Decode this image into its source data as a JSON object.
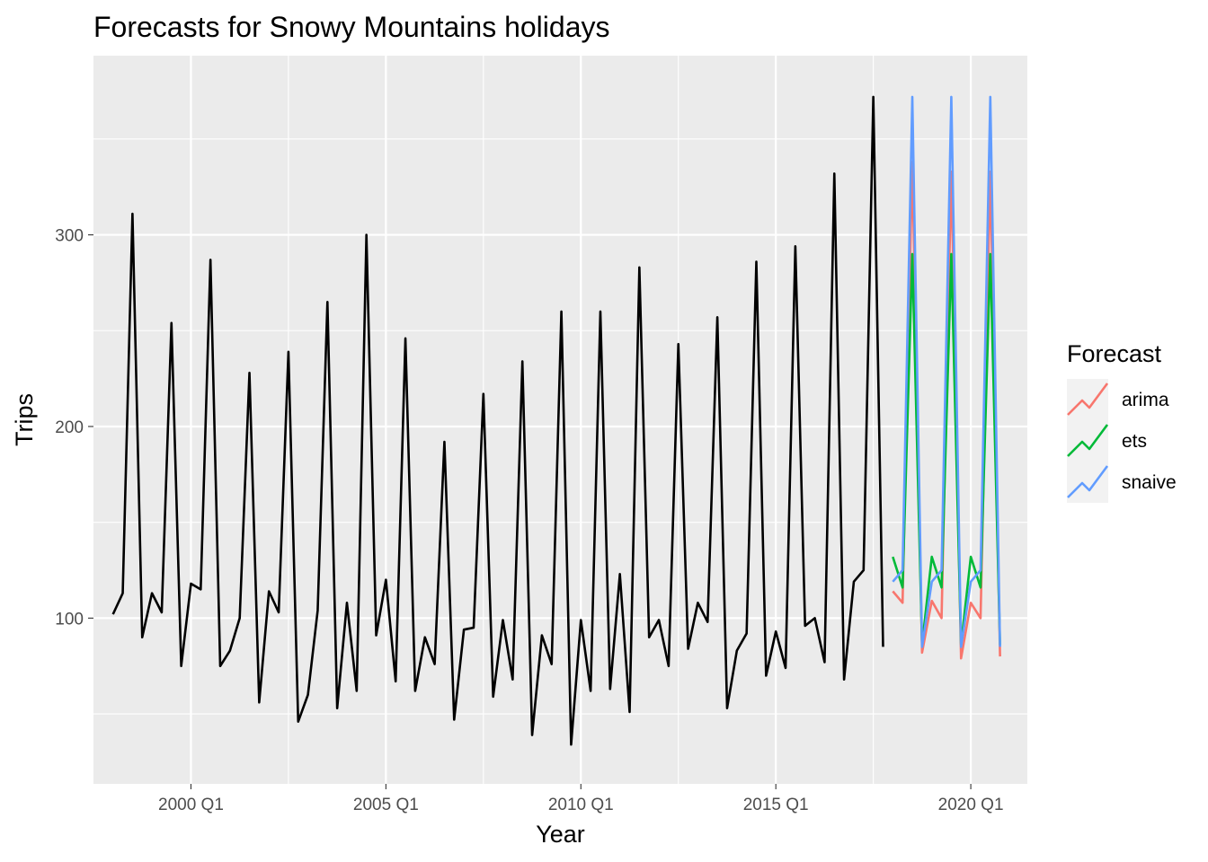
{
  "chart_data": {
    "type": "line",
    "title": "Forecasts for Snowy Mountains holidays",
    "xlabel": "Year",
    "ylabel": "Trips",
    "xlim": [
      1997.5,
      2021.45
    ],
    "ylim": [
      13.5,
      393.5
    ],
    "x_ticks": [
      {
        "value": 2000,
        "label": "2000 Q1"
      },
      {
        "value": 2005,
        "label": "2005 Q1"
      },
      {
        "value": 2010,
        "label": "2010 Q1"
      },
      {
        "value": 2015,
        "label": "2015 Q1"
      },
      {
        "value": 2020,
        "label": "2020 Q1"
      }
    ],
    "y_ticks": [
      100,
      200,
      300
    ],
    "grid": true,
    "legend": {
      "title": "Forecast",
      "placement": "right"
    },
    "history": {
      "start": 1998.0,
      "step": 0.25,
      "color": "#000000",
      "values": [
        102,
        113,
        311,
        90,
        113,
        103,
        254,
        75,
        118,
        115,
        287,
        75,
        83,
        100,
        228,
        56,
        114,
        103,
        239,
        46,
        60,
        104,
        265,
        53,
        108,
        62,
        300,
        91,
        120,
        67,
        246,
        62,
        90,
        76,
        192,
        47,
        94,
        95,
        217,
        59,
        99,
        68,
        234,
        39,
        91,
        76,
        260,
        34,
        99,
        62,
        260,
        63,
        123,
        51,
        283,
        90,
        99,
        75,
        243,
        84,
        108,
        98,
        257,
        53,
        83,
        92,
        286,
        70,
        93,
        74,
        294,
        96,
        100,
        77,
        332,
        68,
        119,
        125,
        372,
        85
      ]
    },
    "forecast_start": 2018.0,
    "forecast_step": 0.25,
    "series": [
      {
        "name": "arima",
        "color": "#F8766D",
        "values": [
          114,
          108,
          338,
          82,
          109,
          100,
          333,
          79,
          108,
          100,
          333,
          80
        ]
      },
      {
        "name": "ets",
        "color": "#00BA38",
        "values": [
          132,
          116,
          290,
          86,
          132,
          116,
          290,
          86,
          132,
          116,
          290,
          86
        ]
      },
      {
        "name": "snaive",
        "color": "#619CFF",
        "values": [
          119,
          125,
          372,
          85,
          119,
          125,
          372,
          85,
          119,
          125,
          372,
          85
        ]
      }
    ]
  }
}
